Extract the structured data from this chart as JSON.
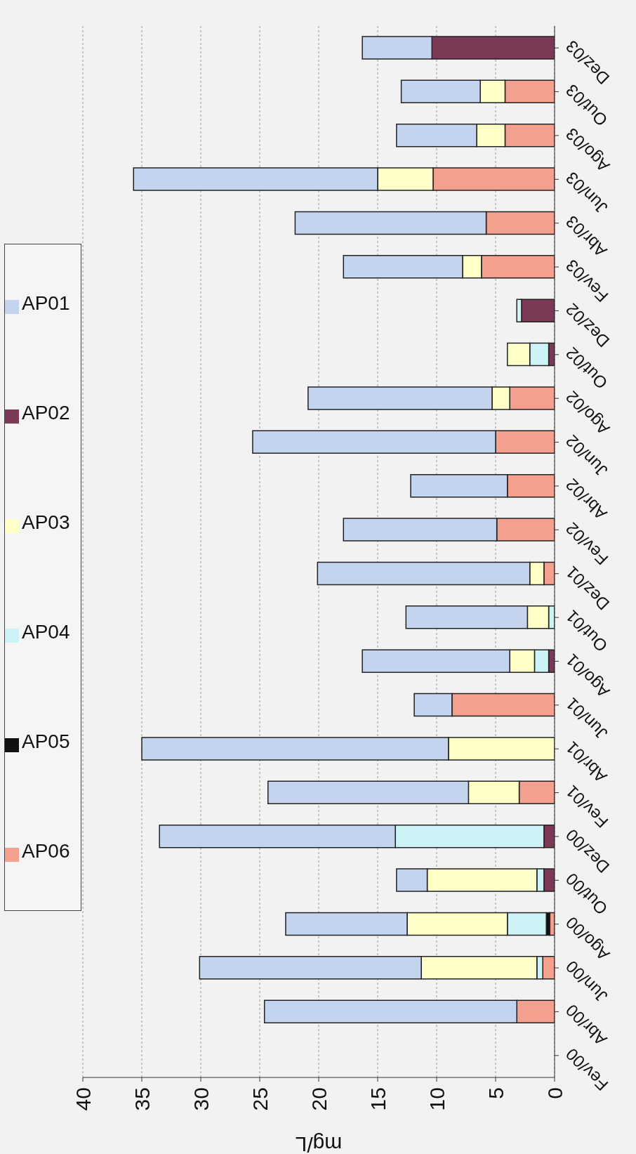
{
  "chart_data": {
    "type": "bar",
    "stacked": true,
    "orientation": "horizontal",
    "xlabel": "mg/L",
    "categories": [
      "Dez/03",
      "Out/03",
      "Ago/03",
      "Jun/03",
      "Abr/03",
      "Fev/03",
      "Dez/02",
      "Out/02",
      "Ago/02",
      "Jun/02",
      "Abr/02",
      "Fev/02",
      "Dez/01",
      "Out/01",
      "Ago/01",
      "Jun/01",
      "Abr/01",
      "Fev/01",
      "Dez/00",
      "Out/00",
      "Ago/00",
      "Jun/00",
      "Abr/00",
      "Fev/00"
    ],
    "series": [
      {
        "name": "AP06",
        "color": "#f4a08e",
        "values": [
          null,
          4.2,
          4.2,
          10.3,
          5.8,
          6.2,
          null,
          null,
          3.8,
          5.0,
          4.0,
          4.9,
          0.9,
          null,
          null,
          8.7,
          null,
          3.0,
          null,
          null,
          0.4,
          1.0,
          3.2,
          null
        ]
      },
      {
        "name": "AP05",
        "color": "#111111",
        "values": [
          null,
          null,
          null,
          null,
          null,
          null,
          null,
          null,
          null,
          null,
          null,
          null,
          null,
          null,
          null,
          null,
          null,
          null,
          null,
          null,
          0.3,
          null,
          null,
          null
        ]
      },
      {
        "name": "AP02",
        "color": "#7a3a55",
        "values": [
          10.4,
          null,
          null,
          null,
          null,
          null,
          2.8,
          0.5,
          null,
          null,
          null,
          null,
          null,
          null,
          0.5,
          null,
          null,
          null,
          0.9,
          0.9,
          null,
          null,
          null,
          null
        ]
      },
      {
        "name": "AP04",
        "color": "#cdf3f6",
        "values": [
          null,
          null,
          null,
          null,
          null,
          null,
          0.4,
          1.6,
          null,
          null,
          null,
          null,
          null,
          0.5,
          1.2,
          null,
          null,
          null,
          12.6,
          0.6,
          3.3,
          0.5,
          null,
          null
        ]
      },
      {
        "name": "AP03",
        "color": "#ffffc8",
        "values": [
          null,
          2.1,
          2.4,
          4.7,
          null,
          1.6,
          null,
          1.9,
          1.5,
          null,
          null,
          null,
          1.2,
          1.8,
          2.1,
          null,
          9.0,
          4.3,
          null,
          9.3,
          8.5,
          9.8,
          null,
          null
        ]
      },
      {
        "name": "AP01",
        "color": "#c4d4ee",
        "values": [
          5.9,
          6.7,
          6.8,
          20.7,
          16.2,
          10.1,
          null,
          null,
          15.6,
          20.6,
          8.2,
          13.0,
          18.0,
          10.3,
          12.5,
          3.2,
          26.0,
          17.0,
          20.0,
          2.6,
          10.3,
          18.8,
          21.4,
          null
        ]
      }
    ],
    "xlim": [
      40,
      0
    ],
    "xticks": [
      40,
      35,
      30,
      25,
      20,
      15,
      10,
      5,
      0
    ],
    "grid": "x",
    "legend": "left"
  }
}
